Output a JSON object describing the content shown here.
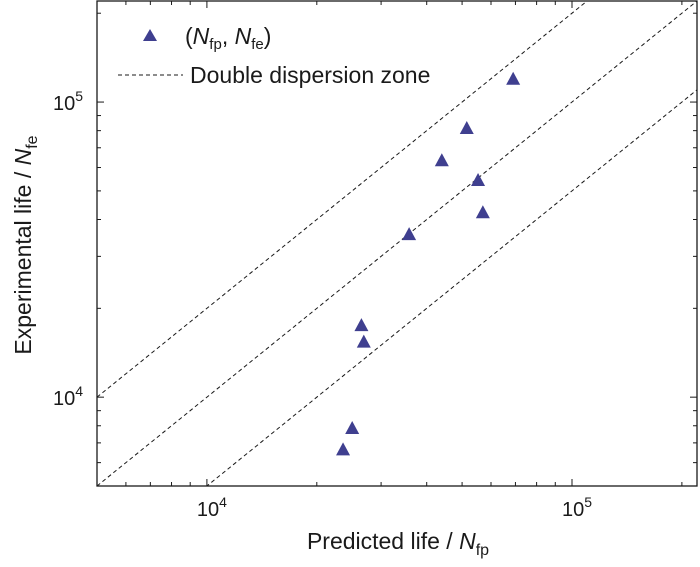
{
  "chart_data": {
    "type": "scatter",
    "scale": "log-log",
    "xlabel": "Predicted life / N_fp",
    "ylabel": "Experimental life / N_fe",
    "xlabel_parts": {
      "prefix": "Predicted life / ",
      "var": "N",
      "sub": "fp"
    },
    "ylabel_parts": {
      "prefix": "Experimental life / ",
      "var": "N",
      "sub": "fe"
    },
    "xlim": [
      5000,
      220000
    ],
    "ylim": [
      5000,
      220000
    ],
    "x_ticks": [
      {
        "value": 10000,
        "base": "10",
        "exp": "4"
      },
      {
        "value": 100000,
        "base": "10",
        "exp": "5"
      }
    ],
    "y_ticks": [
      {
        "value": 10000,
        "base": "10",
        "exp": "4"
      },
      {
        "value": 100000,
        "base": "10",
        "exp": "5"
      }
    ],
    "series": [
      {
        "name": "(N_fp, N_fe)",
        "marker": "triangle",
        "color": "#3f3f8f",
        "points": [
          {
            "x": 23600,
            "y": 6600
          },
          {
            "x": 25000,
            "y": 7800
          },
          {
            "x": 26900,
            "y": 15300
          },
          {
            "x": 26500,
            "y": 17400
          },
          {
            "x": 35800,
            "y": 35400
          },
          {
            "x": 44000,
            "y": 63000
          },
          {
            "x": 51500,
            "y": 81000
          },
          {
            "x": 55300,
            "y": 54000
          },
          {
            "x": 57000,
            "y": 42000
          },
          {
            "x": 69000,
            "y": 119000
          }
        ]
      }
    ],
    "reference_lines": [
      {
        "name": "Double dispersion zone",
        "style": "dashed",
        "factor": 2
      },
      {
        "name": "",
        "style": "dashed",
        "factor": 1
      },
      {
        "name": "",
        "style": "dashed",
        "factor": 0.5
      }
    ],
    "legend": {
      "position": "top-left",
      "entries": [
        {
          "marker": "triangle",
          "parts": {
            "open": "(",
            "v1": "N",
            "s1": "fp",
            "sep": ", ",
            "v2": "N",
            "s2": "fe",
            "close": ")"
          }
        },
        {
          "marker": "dashed-line",
          "label": "Double dispersion zone"
        }
      ]
    },
    "grid": false
  }
}
